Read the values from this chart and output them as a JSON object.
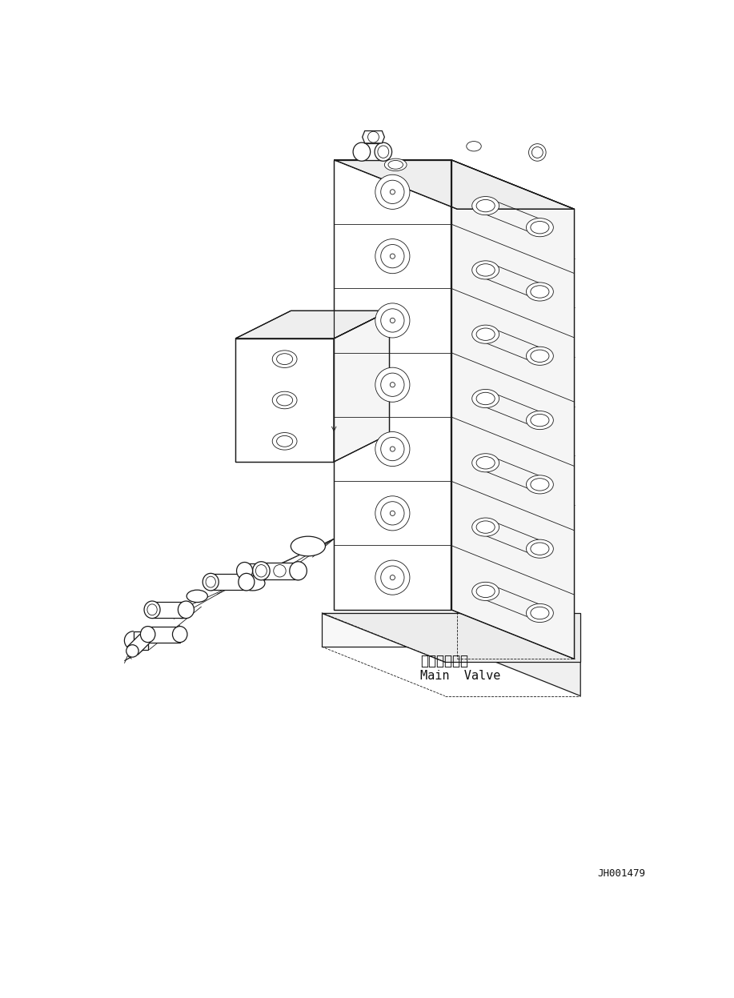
{
  "bg_color": "#ffffff",
  "line_color": "#1a1a1a",
  "fig_width": 9.17,
  "fig_height": 12.47,
  "dpi": 100,
  "label_japanese": "メインバルブ",
  "label_english": "Main  Valve",
  "catalog_number": "JH001479",
  "lw_thin": 0.6,
  "lw_med": 0.9,
  "lw_thick": 1.2
}
